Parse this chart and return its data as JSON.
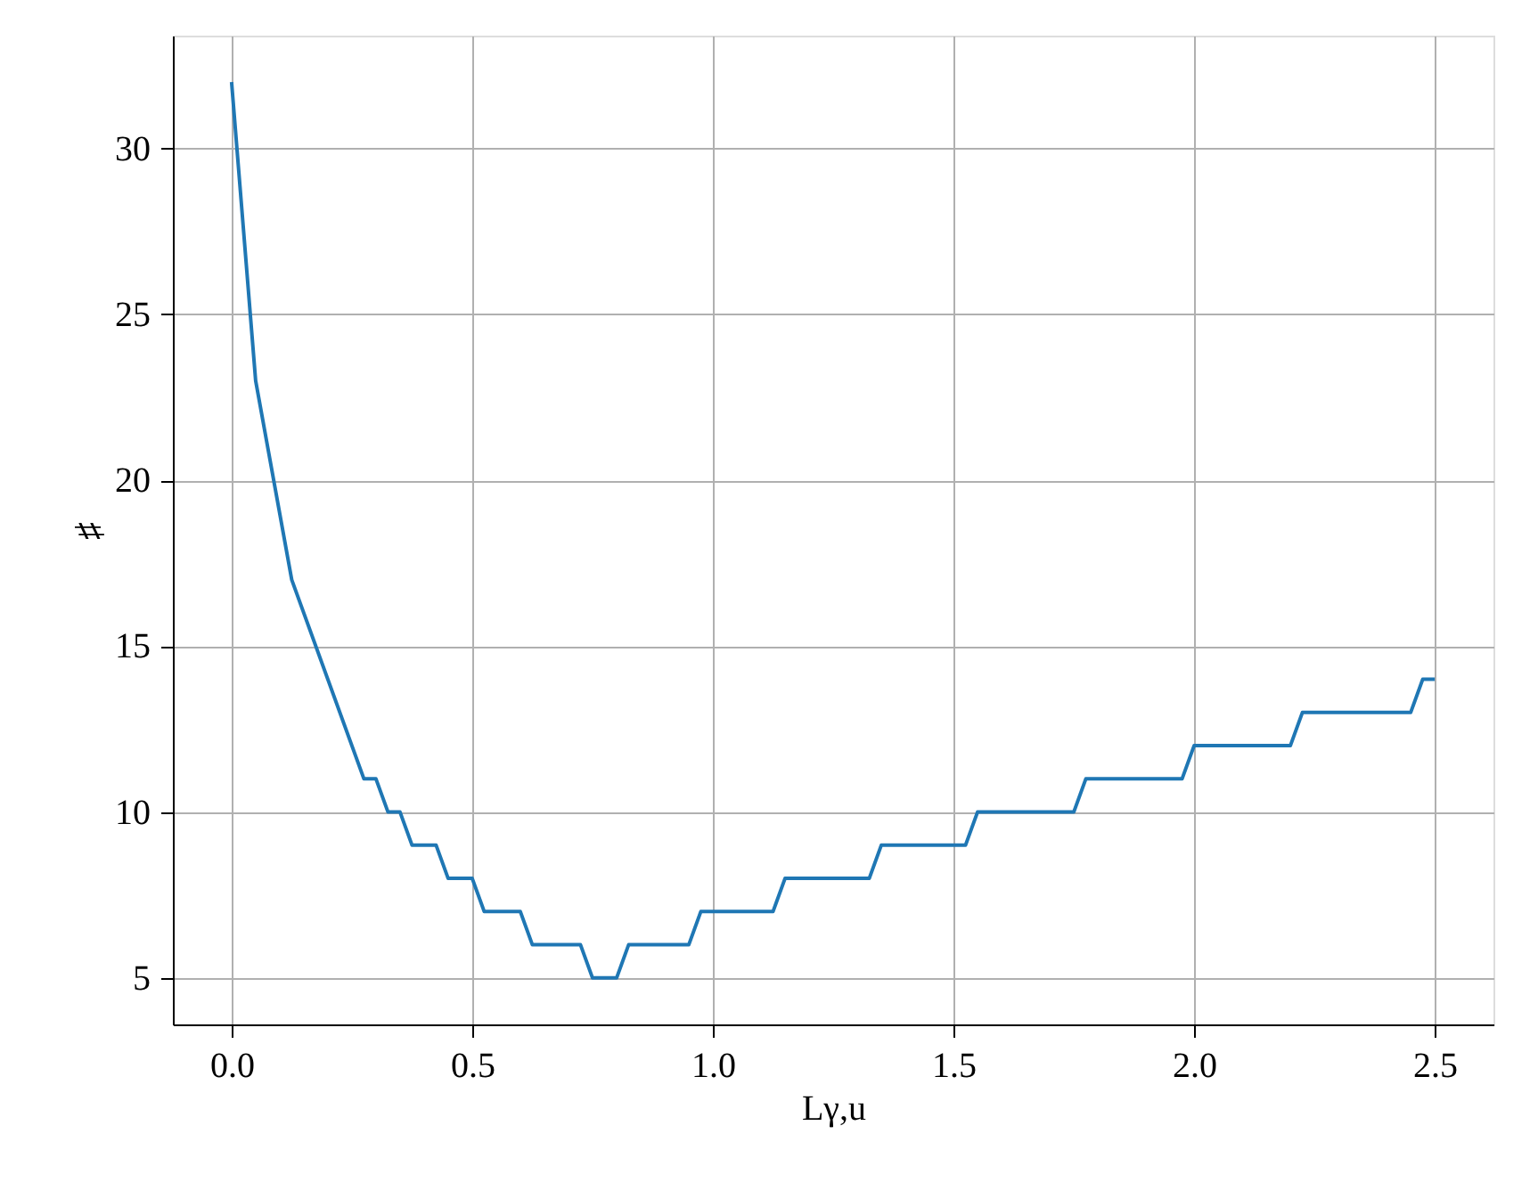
{
  "chart_data": {
    "type": "line",
    "xlabel": "Lγ,u",
    "ylabel": "♯",
    "x": [
      0,
      0.05,
      0.125,
      0.275,
      0.3,
      0.325,
      0.35,
      0.375,
      0.425,
      0.45,
      0.5,
      0.525,
      0.6,
      0.625,
      0.725,
      0.75,
      0.8,
      0.825,
      0.95,
      0.975,
      1.125,
      1.15,
      1.325,
      1.35,
      1.525,
      1.55,
      1.75,
      1.775,
      1.975,
      2.0,
      2.2,
      2.225,
      2.45,
      2.475,
      2.5
    ],
    "series": [
      {
        "color": "#1f77b4",
        "values": [
          32,
          23,
          17,
          11,
          11,
          10,
          10,
          9,
          9,
          8,
          8,
          7,
          7,
          6,
          6,
          5,
          5,
          6,
          6,
          7,
          7,
          8,
          8,
          9,
          9,
          10,
          10,
          11,
          11,
          12,
          12,
          13,
          13,
          14,
          14
        ]
      }
    ],
    "xlim": [
      -0.122,
      2.622
    ],
    "ylim": [
      3.6,
      33.4
    ],
    "xticks": [
      {
        "value": 0,
        "label": "0.0"
      },
      0.5,
      {
        "value": 1,
        "label": "1.0"
      },
      1.5,
      {
        "value": 2,
        "label": "2.0"
      },
      2.5
    ],
    "yticks": [
      5,
      10,
      15,
      20,
      25,
      30
    ],
    "grid": true,
    "line_style": "solid",
    "marker": "none"
  }
}
